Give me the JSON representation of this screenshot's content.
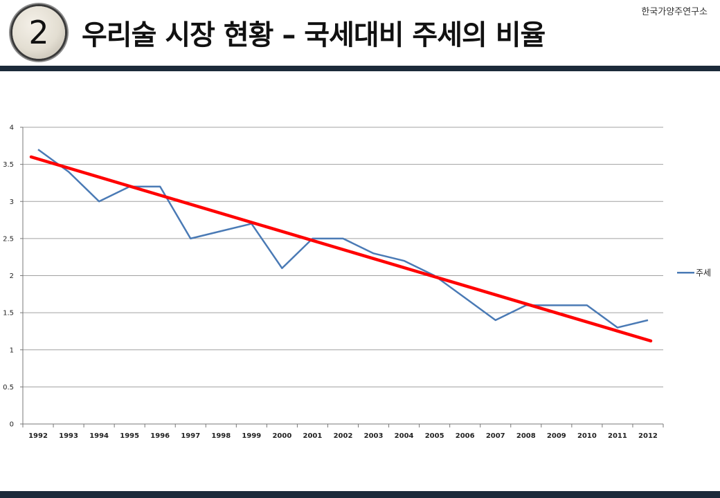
{
  "header": {
    "badge_number": "2",
    "title": "우리술 시장 현황 – 국세대비 주세의 비율",
    "org": "한국가양주연구소"
  },
  "colors": {
    "series": "#4a7ab5",
    "trend": "#ff0000",
    "bar": "#1c2a3a",
    "grid": "#a0a0a0"
  },
  "chart_data": {
    "type": "line",
    "categories": [
      "1992",
      "1993",
      "1994",
      "1995",
      "1996",
      "1997",
      "1998",
      "1999",
      "2000",
      "2001",
      "2002",
      "2003",
      "2004",
      "2005",
      "2006",
      "2007",
      "2008",
      "2009",
      "2010",
      "2011",
      "2012"
    ],
    "series": [
      {
        "name": "주세",
        "values": [
          3.7,
          3.4,
          3.0,
          3.2,
          3.2,
          2.5,
          2.6,
          2.7,
          2.1,
          2.5,
          2.5,
          2.3,
          2.2,
          2.0,
          1.7,
          1.4,
          1.6,
          1.6,
          1.6,
          1.3,
          1.4
        ]
      }
    ],
    "trendline": {
      "start": 3.6,
      "end": 1.12
    },
    "ylim": [
      0,
      4
    ],
    "yticks": [
      "0",
      "0.5",
      "1",
      "1.5",
      "2",
      "2.5",
      "3",
      "3.5",
      "4"
    ],
    "grid": true,
    "legend": "right"
  }
}
